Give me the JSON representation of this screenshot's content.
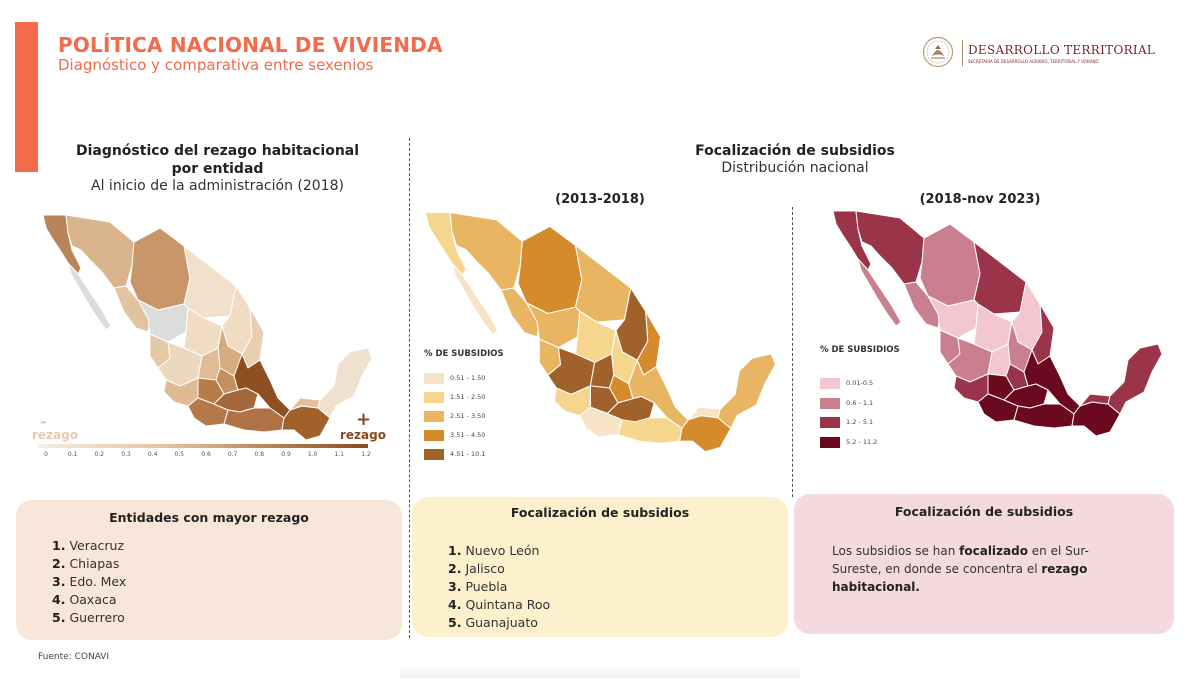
{
  "header": {
    "title": "POLÍTICA NACIONAL DE VIVIENDA",
    "subtitle": "Diagnóstico y comparativa entre sexenios",
    "logo_title": "DESARROLLO TERRITORIAL",
    "logo_subtitle": "SECRETARÍA DE DESARROLLO AGRARIO, TERRITORIAL Y URBANO",
    "accent_color": "#f26b4a"
  },
  "diagnostic": {
    "title_line1": "Diagnóstico del rezago habitacional",
    "title_line2": "por entidad",
    "subtitle": "Al inicio de la administración (2018)",
    "scale_low_symbol": "-",
    "scale_low_label": "rezago",
    "scale_high_symbol": "+",
    "scale_high_label": "rezago",
    "scale_ticks": [
      "0",
      "0.1",
      "0.2",
      "0.3",
      "0.4",
      "0.5",
      "0.6",
      "0.7",
      "0.8",
      "0.9",
      "1.0",
      "1.1",
      "1.2"
    ]
  },
  "focalization": {
    "title": "Focalización de subsidios",
    "subtitle": "Distribución nacional",
    "period_1": "(2013-2018)",
    "period_2": "(2018-nov 2023)",
    "legend_1": {
      "title": "% DE SUBSIDIOS",
      "items": [
        {
          "label": "0.51 - 1.50",
          "color": "#f7e3c6"
        },
        {
          "label": "1.51 - 2.50",
          "color": "#f6d58c"
        },
        {
          "label": "2.51 - 3.50",
          "color": "#e8b563"
        },
        {
          "label": "3.51 - 4.50",
          "color": "#d58b2c"
        },
        {
          "label": "4.51 - 10.1",
          "color": "#a0612a"
        }
      ]
    },
    "legend_2": {
      "title": "% DE SUBSIDIOS",
      "items": [
        {
          "label": "0.01-0.5",
          "color": "#f2c7cf"
        },
        {
          "label": "0.6 - 1.1",
          "color": "#c97f8d"
        },
        {
          "label": "1.2 - 5.1",
          "color": "#9a3549"
        },
        {
          "label": "5.2 - 11.2",
          "color": "#6b0a1e"
        }
      ]
    }
  },
  "boxes": {
    "rezago": {
      "title": "Entidades con mayor rezago",
      "items": [
        {
          "num": "1.",
          "name": "Veracruz"
        },
        {
          "num": "2.",
          "name": "Chiapas"
        },
        {
          "num": "3.",
          "name": "Edo. Mex"
        },
        {
          "num": "4.",
          "name": "Oaxaca"
        },
        {
          "num": "5.",
          "name": "Guerrero"
        }
      ]
    },
    "subsidios_2013": {
      "title": "Focalización de subsidios",
      "items": [
        {
          "num": "1.",
          "name": "Nuevo León"
        },
        {
          "num": "2.",
          "name": "Jalisco"
        },
        {
          "num": "3.",
          "name": "Puebla"
        },
        {
          "num": "4.",
          "name": "Quintana Roo"
        },
        {
          "num": "5.",
          "name": "Guanajuato"
        }
      ]
    },
    "subsidios_2018": {
      "title": "Focalización de subsidios",
      "text_1": "Los subsidios se han ",
      "bold_1": "focalizado",
      "text_2": " en el Sur-Sureste, en donde se concentra el ",
      "bold_2": "rezago habitacional."
    }
  },
  "source": "Fuente: CONAVI"
}
